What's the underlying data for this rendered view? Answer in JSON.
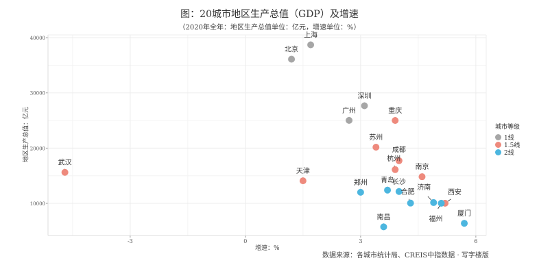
{
  "chart_data": {
    "type": "scatter",
    "title": "图：20城市地区生产总值（GDP）及增速",
    "subtitle": "（2020年全年：地区生产总值单位：亿元，增速单位：%）",
    "xlabel": "增速：%",
    "ylabel": "地区生产总值：亿元",
    "source": "数据来源：各城市统计局、CREIS中指数据 · 写字楼版",
    "xlim": [
      -5.14,
      6.27
    ],
    "ylim": [
      4180,
      40500
    ],
    "xticks": [
      -3,
      0,
      3,
      6
    ],
    "yticks": [
      10000,
      20000,
      30000,
      40000
    ],
    "grid": true,
    "legend": {
      "title": "城市等级",
      "position": "right",
      "entries": [
        {
          "label": "1线",
          "color": "#a6a6a6"
        },
        {
          "label": "1.5线",
          "color": "#ee8a7d"
        },
        {
          "label": "2线",
          "color": "#4cb6df"
        }
      ]
    },
    "points": [
      {
        "city": "上海",
        "x": 1.7,
        "y": 38701,
        "tier": 0
      },
      {
        "city": "北京",
        "x": 1.2,
        "y": 36103,
        "tier": 0
      },
      {
        "city": "深圳",
        "x": 3.1,
        "y": 27670,
        "tier": 0
      },
      {
        "city": "广州",
        "x": 2.7,
        "y": 25019,
        "tier": 0
      },
      {
        "city": "重庆",
        "x": 3.9,
        "y": 25003,
        "tier": 1
      },
      {
        "city": "苏州",
        "x": 3.4,
        "y": 20171,
        "tier": 1
      },
      {
        "city": "成都",
        "x": 4.0,
        "y": 17717,
        "tier": 1
      },
      {
        "city": "杭州",
        "x": 3.9,
        "y": 16106,
        "tier": 1
      },
      {
        "city": "武汉",
        "x": -4.7,
        "y": 15616,
        "tier": 1
      },
      {
        "city": "南京",
        "x": 4.6,
        "y": 14818,
        "tier": 1
      },
      {
        "city": "天津",
        "x": 1.5,
        "y": 14084,
        "tier": 1
      },
      {
        "city": "西安",
        "x": 5.2,
        "y": 10020,
        "tier": 1
      },
      {
        "city": "长沙",
        "x": 4.0,
        "y": 12143,
        "tier": 2
      },
      {
        "city": "郑州",
        "x": 3.0,
        "y": 12003,
        "tier": 2
      },
      {
        "city": "青岛",
        "x": 3.7,
        "y": 12400,
        "tier": 2
      },
      {
        "city": "合肥",
        "x": 4.3,
        "y": 10046,
        "tier": 2
      },
      {
        "city": "济南",
        "x": 4.9,
        "y": 10141,
        "tier": 2
      },
      {
        "city": "福州",
        "x": 5.1,
        "y": 10020,
        "tier": 2
      },
      {
        "city": "厦门",
        "x": 5.7,
        "y": 6384,
        "tier": 2
      },
      {
        "city": "南昌",
        "x": 3.6,
        "y": 5746,
        "tier": 2
      }
    ]
  }
}
